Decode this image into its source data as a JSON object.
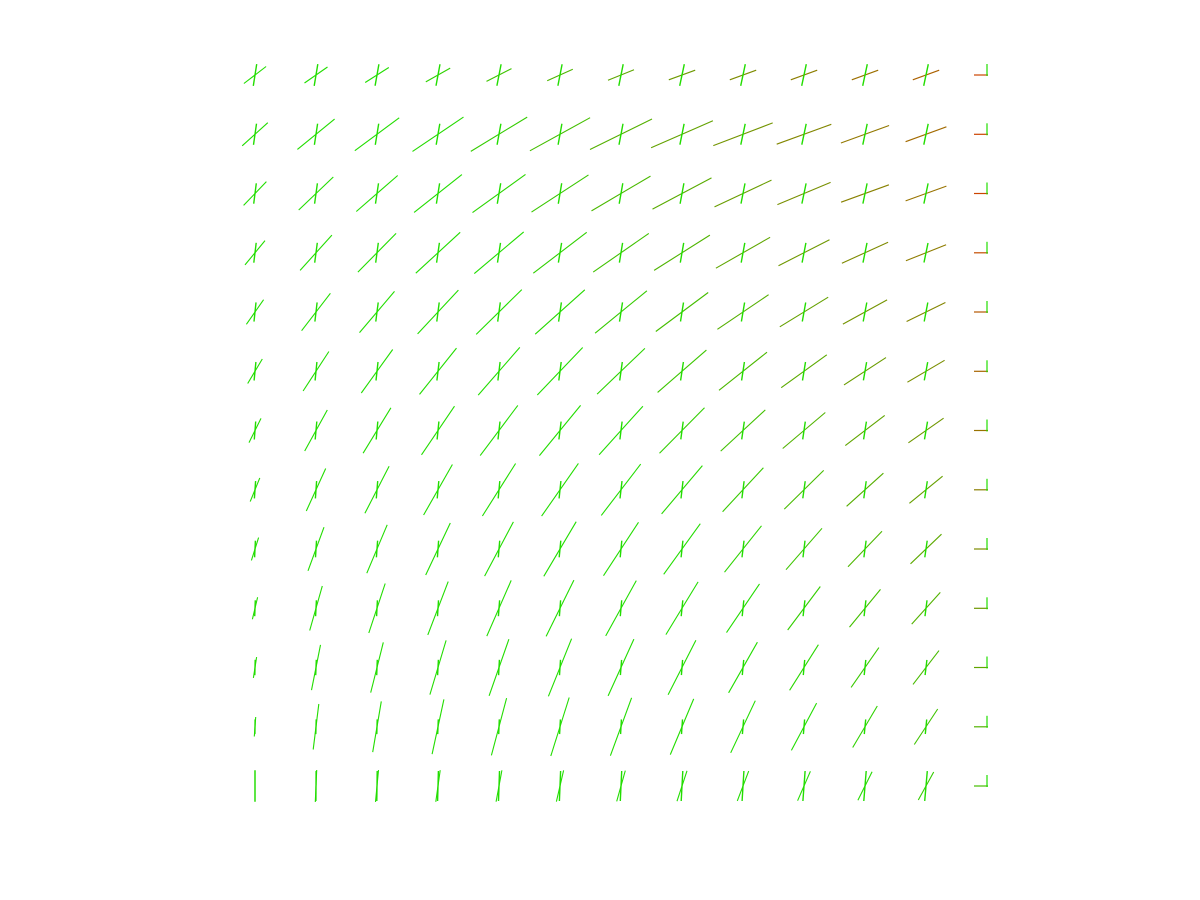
{
  "figure": {
    "type": "quiver-cross-field",
    "axes_visible": false,
    "grid": false,
    "colors": {
      "background": "#ffffff",
      "primary_direction": "#22dd00",
      "secondary_direction": "#cc4400",
      "blend_low": "#22dd00",
      "blend_high": "#cc4400"
    },
    "grid_columns": 13,
    "grid_rows": 13
  }
}
